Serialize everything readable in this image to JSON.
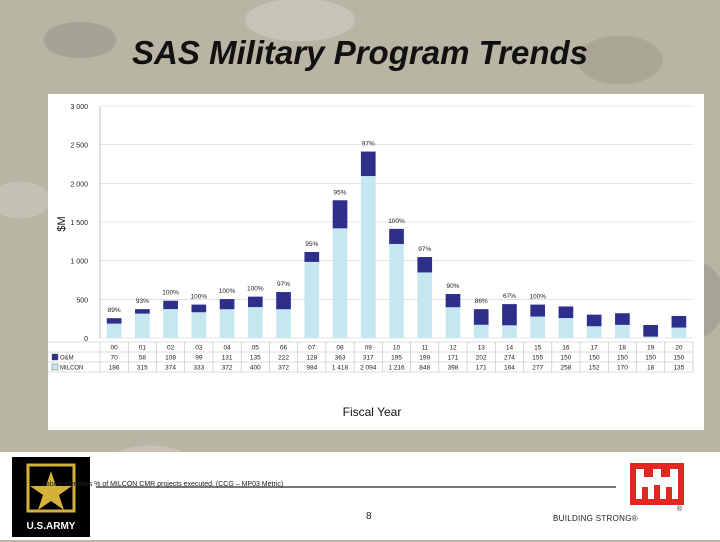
{
  "slide": {
    "title": "SAS Military Program Trends",
    "footnote": "Labels identifies % of MILCON CMR projects executed. (CCG – MP03 Metric)",
    "page_number": "8",
    "tagline": "BUILDING STRONG®",
    "army_logo_text": "U.S.ARMY",
    "usace_registered": "®"
  },
  "colors": {
    "om": "#2e2f8a",
    "milcon": "#c5e7ef",
    "grid": "#cfcfcf"
  },
  "chart_data": {
    "type": "bar",
    "stacked": true,
    "title": "",
    "xlabel": "Fiscal Year",
    "ylabel": "$M",
    "ylim": [
      0,
      3000
    ],
    "yticks": [
      0,
      500,
      1000,
      1500,
      2000,
      2500,
      3000
    ],
    "ytick_labels": [
      "0",
      "500",
      "1 000",
      "1 500",
      "2 000",
      "2 500",
      "3 000"
    ],
    "grid": true,
    "categories": [
      "00",
      "01",
      "02",
      "03",
      "04",
      "05",
      "06",
      "07",
      "08",
      "09",
      "10",
      "11",
      "12",
      "13",
      "14",
      "15",
      "16",
      "17",
      "18",
      "19",
      "20"
    ],
    "series": [
      {
        "name": "MILCON",
        "values": [
          186,
          315,
          374,
          333,
          372,
          400,
          372,
          984,
          1418,
          2094,
          1216,
          848,
          398,
          171,
          164,
          277,
          258,
          152,
          170,
          18,
          135
        ]
      },
      {
        "name": "O&M",
        "values": [
          70,
          58,
          108,
          99,
          131,
          135,
          222,
          128,
          363,
          317,
          195,
          199,
          171,
          202,
          274,
          155,
          150,
          150,
          150,
          150,
          150
        ]
      }
    ],
    "table": {
      "O&M": [
        "70",
        "58",
        "108",
        "99",
        "131",
        "135",
        "222",
        "128",
        "363",
        "317",
        "195",
        "199",
        "171",
        "202",
        "274",
        "155",
        "150",
        "150",
        "150",
        "150",
        "150"
      ],
      "MILCON": [
        "186",
        "315",
        "374",
        "333",
        "372",
        "400",
        "372",
        "984",
        "1 418",
        "2 094",
        "1 216",
        "848",
        "398",
        "171",
        "164",
        "277",
        "258",
        "152",
        "170",
        "18",
        "135"
      ]
    },
    "annotations": [
      {
        "category": "00",
        "label": "89%"
      },
      {
        "category": "01",
        "label": "93%"
      },
      {
        "category": "02",
        "label": "100%"
      },
      {
        "category": "03",
        "label": "100%"
      },
      {
        "category": "04",
        "label": "100%"
      },
      {
        "category": "05",
        "label": "100%"
      },
      {
        "category": "06",
        "label": "97%"
      },
      {
        "category": "07",
        "label": "95%"
      },
      {
        "category": "08",
        "label": "95%"
      },
      {
        "category": "09",
        "label": "97%"
      },
      {
        "category": "10",
        "label": "100%"
      },
      {
        "category": "11",
        "label": "97%"
      },
      {
        "category": "12",
        "label": "90%"
      },
      {
        "category": "13",
        "label": "86%"
      },
      {
        "category": "14",
        "label": "67%"
      },
      {
        "category": "15",
        "label": "100%"
      }
    ]
  }
}
